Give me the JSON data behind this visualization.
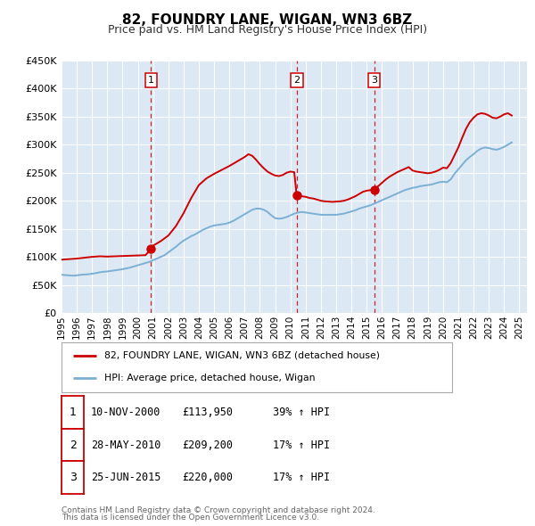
{
  "title": "82, FOUNDRY LANE, WIGAN, WN3 6BZ",
  "subtitle": "Price paid vs. HM Land Registry's House Price Index (HPI)",
  "legend_label_property": "82, FOUNDRY LANE, WIGAN, WN3 6BZ (detached house)",
  "legend_label_hpi": "HPI: Average price, detached house, Wigan",
  "footer_line1": "Contains HM Land Registry data © Crown copyright and database right 2024.",
  "footer_line2": "This data is licensed under the Open Government Licence v3.0.",
  "property_color": "#cc0000",
  "hpi_color": "#7bafd4",
  "plot_bg_color": "#dce9f5",
  "grid_color": "#ffffff",
  "ylim": [
    0,
    450000
  ],
  "yticks": [
    0,
    50000,
    100000,
    150000,
    200000,
    250000,
    300000,
    350000,
    400000,
    450000
  ],
  "ytick_labels": [
    "£0",
    "£50K",
    "£100K",
    "£150K",
    "£200K",
    "£250K",
    "£300K",
    "£350K",
    "£400K",
    "£450K"
  ],
  "xlim_start": 1995.0,
  "xlim_end": 2025.5,
  "sale_markers": [
    {
      "label": "1",
      "year": 2000.87,
      "price": 113950,
      "date": "10-NOV-2000",
      "hpi_pct": "39%"
    },
    {
      "label": "2",
      "year": 2010.41,
      "price": 209200,
      "date": "28-MAY-2010",
      "hpi_pct": "17%"
    },
    {
      "label": "3",
      "year": 2015.48,
      "price": 220000,
      "date": "25-JUN-2015",
      "hpi_pct": "17%"
    }
  ],
  "hpi_data": [
    [
      1995.0,
      68000
    ],
    [
      1995.25,
      67500
    ],
    [
      1995.5,
      67000
    ],
    [
      1995.75,
      66500
    ],
    [
      1996.0,
      67000
    ],
    [
      1996.25,
      68000
    ],
    [
      1996.5,
      68500
    ],
    [
      1996.75,
      69000
    ],
    [
      1997.0,
      70000
    ],
    [
      1997.25,
      71000
    ],
    [
      1997.5,
      72500
    ],
    [
      1997.75,
      73500
    ],
    [
      1998.0,
      74000
    ],
    [
      1998.25,
      75000
    ],
    [
      1998.5,
      76000
    ],
    [
      1998.75,
      77000
    ],
    [
      1999.0,
      78000
    ],
    [
      1999.25,
      79500
    ],
    [
      1999.5,
      81000
    ],
    [
      1999.75,
      83000
    ],
    [
      2000.0,
      85000
    ],
    [
      2000.25,
      87000
    ],
    [
      2000.5,
      89000
    ],
    [
      2000.75,
      91000
    ],
    [
      2001.0,
      94000
    ],
    [
      2001.25,
      97000
    ],
    [
      2001.5,
      100000
    ],
    [
      2001.75,
      103000
    ],
    [
      2002.0,
      108000
    ],
    [
      2002.25,
      113000
    ],
    [
      2002.5,
      118000
    ],
    [
      2002.75,
      124000
    ],
    [
      2003.0,
      129000
    ],
    [
      2003.25,
      133000
    ],
    [
      2003.5,
      137000
    ],
    [
      2003.75,
      140000
    ],
    [
      2004.0,
      144000
    ],
    [
      2004.25,
      148000
    ],
    [
      2004.5,
      151000
    ],
    [
      2004.75,
      154000
    ],
    [
      2005.0,
      156000
    ],
    [
      2005.25,
      157000
    ],
    [
      2005.5,
      158000
    ],
    [
      2005.75,
      159000
    ],
    [
      2006.0,
      161000
    ],
    [
      2006.25,
      164000
    ],
    [
      2006.5,
      168000
    ],
    [
      2006.75,
      172000
    ],
    [
      2007.0,
      176000
    ],
    [
      2007.25,
      180000
    ],
    [
      2007.5,
      184000
    ],
    [
      2007.75,
      186000
    ],
    [
      2008.0,
      186000
    ],
    [
      2008.25,
      184000
    ],
    [
      2008.5,
      180000
    ],
    [
      2008.75,
      174000
    ],
    [
      2009.0,
      169000
    ],
    [
      2009.25,
      168000
    ],
    [
      2009.5,
      169000
    ],
    [
      2009.75,
      171000
    ],
    [
      2010.0,
      174000
    ],
    [
      2010.25,
      177000
    ],
    [
      2010.5,
      179000
    ],
    [
      2010.75,
      180000
    ],
    [
      2011.0,
      179000
    ],
    [
      2011.25,
      178000
    ],
    [
      2011.5,
      177000
    ],
    [
      2011.75,
      176000
    ],
    [
      2012.0,
      175000
    ],
    [
      2012.25,
      175000
    ],
    [
      2012.5,
      175000
    ],
    [
      2012.75,
      175000
    ],
    [
      2013.0,
      175000
    ],
    [
      2013.25,
      176000
    ],
    [
      2013.5,
      177000
    ],
    [
      2013.75,
      179000
    ],
    [
      2014.0,
      181000
    ],
    [
      2014.25,
      183000
    ],
    [
      2014.5,
      186000
    ],
    [
      2014.75,
      188000
    ],
    [
      2015.0,
      190000
    ],
    [
      2015.25,
      192000
    ],
    [
      2015.5,
      195000
    ],
    [
      2015.75,
      198000
    ],
    [
      2016.0,
      201000
    ],
    [
      2016.25,
      204000
    ],
    [
      2016.5,
      207000
    ],
    [
      2016.75,
      210000
    ],
    [
      2017.0,
      213000
    ],
    [
      2017.25,
      216000
    ],
    [
      2017.5,
      219000
    ],
    [
      2017.75,
      221000
    ],
    [
      2018.0,
      223000
    ],
    [
      2018.25,
      224000
    ],
    [
      2018.5,
      226000
    ],
    [
      2018.75,
      227000
    ],
    [
      2019.0,
      228000
    ],
    [
      2019.25,
      229000
    ],
    [
      2019.5,
      231000
    ],
    [
      2019.75,
      233000
    ],
    [
      2020.0,
      234000
    ],
    [
      2020.25,
      233000
    ],
    [
      2020.5,
      238000
    ],
    [
      2020.75,
      248000
    ],
    [
      2021.0,
      256000
    ],
    [
      2021.25,
      264000
    ],
    [
      2021.5,
      272000
    ],
    [
      2021.75,
      278000
    ],
    [
      2022.0,
      283000
    ],
    [
      2022.25,
      289000
    ],
    [
      2022.5,
      293000
    ],
    [
      2022.75,
      295000
    ],
    [
      2023.0,
      294000
    ],
    [
      2023.25,
      292000
    ],
    [
      2023.5,
      291000
    ],
    [
      2023.75,
      293000
    ],
    [
      2024.0,
      296000
    ],
    [
      2024.25,
      300000
    ],
    [
      2024.5,
      304000
    ]
  ],
  "property_data": [
    [
      1995.0,
      95000
    ],
    [
      1995.5,
      96000
    ],
    [
      1996.0,
      97000
    ],
    [
      1996.5,
      98500
    ],
    [
      1997.0,
      100000
    ],
    [
      1997.5,
      101000
    ],
    [
      1998.0,
      100500
    ],
    [
      1998.5,
      101000
    ],
    [
      1999.0,
      101500
    ],
    [
      1999.5,
      102000
    ],
    [
      2000.0,
      102500
    ],
    [
      2000.5,
      103000
    ],
    [
      2000.87,
      113950
    ],
    [
      2001.0,
      120000
    ],
    [
      2001.5,
      128000
    ],
    [
      2002.0,
      138000
    ],
    [
      2002.5,
      155000
    ],
    [
      2003.0,
      178000
    ],
    [
      2003.5,
      205000
    ],
    [
      2004.0,
      228000
    ],
    [
      2004.5,
      240000
    ],
    [
      2005.0,
      248000
    ],
    [
      2005.5,
      255000
    ],
    [
      2006.0,
      262000
    ],
    [
      2006.5,
      270000
    ],
    [
      2007.0,
      278000
    ],
    [
      2007.25,
      283000
    ],
    [
      2007.5,
      280000
    ],
    [
      2007.75,
      273000
    ],
    [
      2008.0,
      265000
    ],
    [
      2008.25,
      258000
    ],
    [
      2008.5,
      252000
    ],
    [
      2008.75,
      248000
    ],
    [
      2009.0,
      245000
    ],
    [
      2009.25,
      244000
    ],
    [
      2009.5,
      246000
    ],
    [
      2009.75,
      250000
    ],
    [
      2010.0,
      252000
    ],
    [
      2010.25,
      251000
    ],
    [
      2010.41,
      209200
    ],
    [
      2010.5,
      210000
    ],
    [
      2010.75,
      208000
    ],
    [
      2011.0,
      207000
    ],
    [
      2011.25,
      205000
    ],
    [
      2011.5,
      204000
    ],
    [
      2011.75,
      202000
    ],
    [
      2012.0,
      200000
    ],
    [
      2012.25,
      199000
    ],
    [
      2012.5,
      198500
    ],
    [
      2012.75,
      198000
    ],
    [
      2013.0,
      198500
    ],
    [
      2013.25,
      199000
    ],
    [
      2013.5,
      200000
    ],
    [
      2013.75,
      202000
    ],
    [
      2014.0,
      205000
    ],
    [
      2014.25,
      208000
    ],
    [
      2014.5,
      212000
    ],
    [
      2014.75,
      216000
    ],
    [
      2015.0,
      218000
    ],
    [
      2015.25,
      219000
    ],
    [
      2015.48,
      220000
    ],
    [
      2015.5,
      222000
    ],
    [
      2015.75,
      226000
    ],
    [
      2016.0,
      232000
    ],
    [
      2016.25,
      238000
    ],
    [
      2016.5,
      243000
    ],
    [
      2016.75,
      247000
    ],
    [
      2017.0,
      251000
    ],
    [
      2017.25,
      254000
    ],
    [
      2017.5,
      257000
    ],
    [
      2017.75,
      260000
    ],
    [
      2018.0,
      254000
    ],
    [
      2018.25,
      252000
    ],
    [
      2018.5,
      251000
    ],
    [
      2018.75,
      250000
    ],
    [
      2019.0,
      249000
    ],
    [
      2019.25,
      250000
    ],
    [
      2019.5,
      252000
    ],
    [
      2019.75,
      255000
    ],
    [
      2020.0,
      259000
    ],
    [
      2020.25,
      258000
    ],
    [
      2020.5,
      267000
    ],
    [
      2020.75,
      281000
    ],
    [
      2021.0,
      295000
    ],
    [
      2021.25,
      312000
    ],
    [
      2021.5,
      328000
    ],
    [
      2021.75,
      340000
    ],
    [
      2022.0,
      348000
    ],
    [
      2022.25,
      354000
    ],
    [
      2022.5,
      356000
    ],
    [
      2022.75,
      355000
    ],
    [
      2023.0,
      352000
    ],
    [
      2023.25,
      348000
    ],
    [
      2023.5,
      347000
    ],
    [
      2023.75,
      350000
    ],
    [
      2024.0,
      354000
    ],
    [
      2024.25,
      356000
    ],
    [
      2024.5,
      352000
    ]
  ]
}
